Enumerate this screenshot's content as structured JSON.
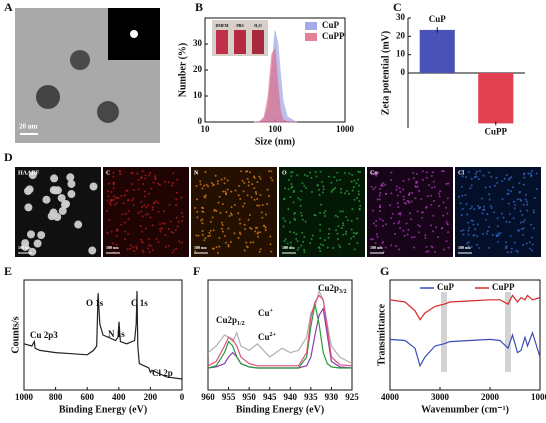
{
  "figure": {
    "panel_labels": [
      "A",
      "B",
      "C",
      "D",
      "E",
      "F",
      "G"
    ],
    "tem_scale": "20 nm",
    "inset_labels": [
      "DMEM",
      "PBS",
      "H₂O"
    ],
    "mapping": {
      "channels": [
        "HAADF",
        "C",
        "N",
        "O",
        "Cu",
        "Cl"
      ],
      "scale": "100 nm"
    }
  },
  "chart_data": [
    {
      "type": "line",
      "xlabel": "Size (nm)",
      "ylabel": "Number (%)",
      "log_x": true,
      "fill": true,
      "xlim": [
        10,
        1000
      ],
      "xticks": [
        10,
        100,
        1000
      ],
      "ylim": [
        0,
        40
      ],
      "yticks": [
        0,
        10,
        20,
        30
      ],
      "legend": "upper right",
      "x": [
        50,
        60,
        70,
        80,
        90,
        100,
        110,
        120,
        130,
        150,
        200
      ],
      "series": [
        {
          "name": "CuP",
          "color": "#8f96e0",
          "values": [
            0,
            0,
            1,
            6,
            20,
            35,
            30,
            18,
            8,
            2,
            0
          ]
        },
        {
          "name": "CuPP",
          "color": "#e0607a",
          "values": [
            0,
            0,
            2,
            10,
            26,
            28,
            14,
            4,
            1,
            0,
            0
          ]
        }
      ]
    },
    {
      "type": "bar",
      "ylabel": "Zeta potential (mV)",
      "categories": [
        "CuP",
        "CuPP"
      ],
      "values": [
        23.5,
        -27.5
      ],
      "errors": [
        1.5,
        1.0
      ],
      "colors": [
        "#4a52b8",
        "#e04050"
      ],
      "ylim": [
        -30,
        30
      ],
      "yticks": [
        0,
        10,
        20,
        30
      ]
    },
    {
      "type": "line",
      "xlabel": "Binding Energy (eV)",
      "ylabel": "Counts/s",
      "xlim": [
        1000,
        0
      ],
      "xticks": [
        1000,
        800,
        600,
        400,
        200,
        0
      ],
      "ylim": [
        0,
        100
      ],
      "x": [
        1000,
        950,
        935,
        930,
        900,
        800,
        700,
        600,
        560,
        540,
        531,
        520,
        500,
        420,
        405,
        399,
        390,
        350,
        300,
        290,
        285,
        280,
        270,
        210,
        200,
        190,
        100,
        0
      ],
      "series": [
        {
          "color": "#222",
          "values": [
            42,
            40,
            44,
            38,
            36,
            34,
            33,
            32,
            36,
            40,
            88,
            60,
            50,
            45,
            48,
            62,
            44,
            42,
            45,
            60,
            90,
            40,
            24,
            20,
            16,
            18,
            12,
            10
          ]
        }
      ],
      "annotations": [
        {
          "text": "Cu 2p3"
        },
        {
          "text": "O 1s"
        },
        {
          "text": "N 1s"
        },
        {
          "text": "C 1s"
        },
        {
          "text": "Cl 2p"
        }
      ]
    },
    {
      "type": "line",
      "xlabel": "Binding Energy (eV)",
      "xlim": [
        960,
        925
      ],
      "xticks": [
        960,
        955,
        950,
        945,
        940,
        935,
        930,
        925
      ],
      "ylim": [
        0,
        100
      ],
      "x": [
        960,
        958,
        956,
        955,
        954,
        953,
        952,
        950,
        948,
        945,
        942,
        940,
        938,
        936,
        935,
        934,
        933,
        932,
        931,
        930,
        928,
        925
      ],
      "series": [
        {
          "color": "#b0b0b0",
          "values": [
            34,
            40,
            50,
            48,
            44,
            52,
            40,
            36,
            42,
            30,
            38,
            34,
            36,
            48,
            70,
            76,
            90,
            82,
            60,
            40,
            30,
            24
          ]
        },
        {
          "color": "#8a3db0",
          "values": [
            20,
            21,
            24,
            30,
            34,
            30,
            24,
            21,
            20,
            20,
            20,
            20,
            20,
            22,
            30,
            50,
            68,
            74,
            50,
            26,
            21,
            20
          ]
        },
        {
          "color": "#2a9a3a",
          "values": [
            20,
            22,
            34,
            44,
            40,
            30,
            24,
            21,
            20,
            20,
            20,
            20,
            20,
            30,
            58,
            78,
            60,
            34,
            24,
            21,
            20,
            20
          ]
        },
        {
          "color": "#e05080",
          "values": [
            22,
            26,
            40,
            48,
            46,
            40,
            30,
            24,
            22,
            22,
            22,
            22,
            22,
            34,
            66,
            80,
            86,
            82,
            56,
            30,
            23,
            22
          ]
        }
      ],
      "annotations": [
        {
          "text": "Cu2p",
          "sub": "1/2"
        },
        {
          "text": "Cu2p",
          "sub": "3/2"
        },
        {
          "text": "Cu",
          "sup": "+"
        },
        {
          "text": "Cu",
          "sup": "2+"
        }
      ]
    },
    {
      "type": "line",
      "xlabel": "Wavenumber (cm⁻¹)",
      "ylabel": "Transmittance",
      "xlim": [
        4000,
        1000
      ],
      "xticks": [
        4000,
        3000,
        2000,
        1000
      ],
      "ylim": [
        0,
        100
      ],
      "legend": "top",
      "highlight_x": [
        2920,
        1640
      ],
      "x": [
        4000,
        3700,
        3500,
        3400,
        3300,
        3100,
        2920,
        2800,
        2400,
        2000,
        1800,
        1640,
        1550,
        1450,
        1380,
        1300,
        1250,
        1150,
        1000
      ],
      "series": [
        {
          "name": "CuP",
          "color": "#3a4db8",
          "values": [
            46,
            45,
            38,
            22,
            30,
            40,
            42,
            44,
            45,
            46,
            45,
            38,
            50,
            34,
            36,
            48,
            40,
            52,
            30
          ]
        },
        {
          "name": "CuPP",
          "color": "#d62828",
          "values": [
            82,
            80,
            72,
            64,
            70,
            76,
            78,
            80,
            81,
            82,
            82,
            78,
            86,
            80,
            84,
            82,
            86,
            82,
            84
          ]
        }
      ]
    }
  ]
}
